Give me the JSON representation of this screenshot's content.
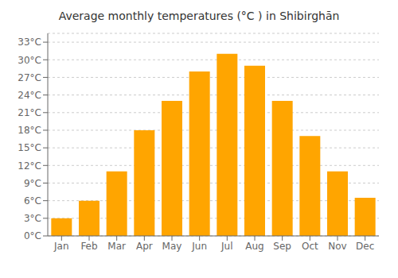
{
  "chart_data": {
    "type": "bar",
    "title": "Average monthly temperatures (°C ) in Shibirghān",
    "categories": [
      "Jan",
      "Feb",
      "Mar",
      "Apr",
      "May",
      "Jun",
      "Jul",
      "Aug",
      "Sep",
      "Oct",
      "Nov",
      "Dec"
    ],
    "values": [
      3,
      6,
      11,
      18,
      23,
      28,
      31,
      29,
      23,
      17,
      11,
      6.5
    ],
    "color": "#FFA500",
    "ylim": [
      0,
      34.5
    ],
    "yticks": [
      {
        "value": 0,
        "label": "0°C"
      },
      {
        "value": 3,
        "label": "3°C"
      },
      {
        "value": 6,
        "label": "6°C"
      },
      {
        "value": 9,
        "label": "9°C"
      },
      {
        "value": 12,
        "label": "12°C"
      },
      {
        "value": 15,
        "label": "15°C"
      },
      {
        "value": 18,
        "label": "18°C"
      },
      {
        "value": 21,
        "label": "21°C"
      },
      {
        "value": 24,
        "label": "24°C"
      },
      {
        "value": 27,
        "label": "27°C"
      },
      {
        "value": 30,
        "label": "30°C"
      },
      {
        "value": 33,
        "label": "33°C"
      }
    ],
    "grid": true
  }
}
